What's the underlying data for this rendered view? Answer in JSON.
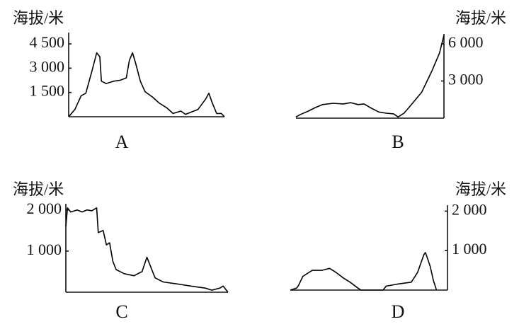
{
  "chart_data": [
    {
      "type": "line",
      "title": "A",
      "y_label": "海拔/米",
      "axis_side": "left",
      "color": "#000000",
      "x": [
        0,
        4,
        8,
        11,
        15,
        18,
        20,
        21,
        24,
        29,
        33,
        37,
        39,
        41,
        43,
        46,
        49,
        54,
        58,
        63,
        67,
        72,
        75,
        79,
        83,
        88,
        90,
        92,
        95,
        98,
        100
      ],
      "values": [
        0,
        450,
        1300,
        1450,
        2850,
        3950,
        3700,
        2200,
        2050,
        2200,
        2250,
        2400,
        3500,
        3950,
        3300,
        2200,
        1550,
        1200,
        850,
        550,
        200,
        350,
        150,
        300,
        450,
        1100,
        1450,
        900,
        200,
        200,
        0
      ],
      "xlim": [
        0,
        100
      ],
      "ylim": [
        0,
        5200
      ],
      "yticks": [
        {
          "value": 1500,
          "label": "1 500"
        },
        {
          "value": 3000,
          "label": "3 000"
        },
        {
          "value": 4500,
          "label": "4 500"
        }
      ]
    },
    {
      "type": "line",
      "title": "B",
      "y_label": "海拔/米",
      "axis_side": "right",
      "color": "#000000",
      "x": [
        0,
        3,
        8,
        13,
        18,
        25,
        32,
        37,
        42,
        46,
        51,
        56,
        61,
        66,
        69,
        73,
        77,
        85,
        92,
        97,
        100
      ],
      "values": [
        100,
        300,
        550,
        850,
        1100,
        1200,
        1150,
        1250,
        1100,
        1150,
        800,
        500,
        400,
        350,
        100,
        400,
        950,
        2100,
        3850,
        5250,
        6700
      ],
      "xlim": [
        0,
        100
      ],
      "ylim": [
        0,
        6800
      ],
      "yticks": [
        {
          "value": 3000,
          "label": "3 000"
        },
        {
          "value": 6000,
          "label": "6 000"
        }
      ]
    },
    {
      "type": "line",
      "title": "C",
      "y_label": "海拔/米",
      "axis_side": "left",
      "color": "#000000",
      "x": [
        0,
        1,
        3,
        7,
        10,
        13,
        16,
        19,
        20,
        23,
        25,
        27,
        29,
        31,
        36,
        42,
        47,
        50,
        52,
        55,
        60,
        69,
        77,
        86,
        90,
        95,
        97,
        100
      ],
      "values": [
        1600,
        2050,
        1950,
        2000,
        1950,
        2000,
        1980,
        2050,
        1450,
        1500,
        1150,
        1200,
        750,
        550,
        450,
        400,
        500,
        850,
        650,
        350,
        250,
        200,
        150,
        100,
        50,
        100,
        150,
        0
      ],
      "xlim": [
        0,
        100
      ],
      "ylim": [
        0,
        2150
      ],
      "yticks": [
        {
          "value": 1000,
          "label": "1 000"
        },
        {
          "value": 2000,
          "label": "2 000"
        }
      ]
    },
    {
      "type": "line",
      "title": "D",
      "y_label": "海拔/米",
      "axis_side": "right",
      "color": "#000000",
      "x": [
        0,
        4,
        5,
        8,
        14,
        20,
        25,
        29,
        34,
        38,
        43,
        45,
        59,
        61,
        68,
        77,
        81,
        85,
        86,
        89,
        91,
        93
      ],
      "values": [
        0,
        50,
        100,
        350,
        500,
        500,
        550,
        450,
        300,
        200,
        50,
        0,
        0,
        100,
        150,
        200,
        450,
        900,
        950,
        600,
        250,
        0
      ],
      "xlim": [
        0,
        100
      ],
      "ylim": [
        0,
        2150
      ],
      "yticks": [
        {
          "value": 1000,
          "label": "1 000"
        },
        {
          "value": 2000,
          "label": "2 000"
        }
      ]
    }
  ]
}
